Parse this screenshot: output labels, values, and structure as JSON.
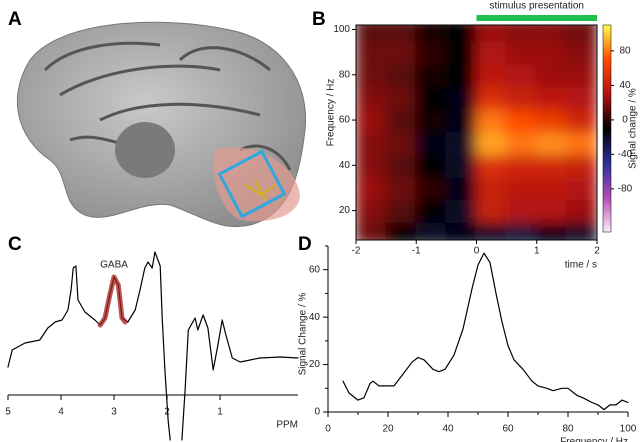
{
  "chart_data": [
    {
      "type": "image",
      "label": "A"
    },
    {
      "type": "heatmap",
      "label": "B",
      "annotation": "stimulus presentation",
      "annotation_range": [
        0,
        2
      ],
      "annotation_color": "#1fbf4f",
      "x": [
        -1.75,
        -1.25,
        -0.75,
        -0.25,
        0.25,
        0.75,
        1.25,
        1.75
      ],
      "y": [
        10,
        20,
        30,
        40,
        50,
        60,
        70,
        80,
        90,
        100
      ],
      "z": [
        [
          15,
          -10,
          -20,
          -15,
          -20,
          -25,
          -15,
          -20
        ],
        [
          20,
          10,
          -10,
          -20,
          40,
          30,
          30,
          25
        ],
        [
          25,
          15,
          0,
          -15,
          40,
          35,
          35,
          30
        ],
        [
          20,
          10,
          -10,
          -20,
          50,
          45,
          45,
          40
        ],
        [
          20,
          15,
          -15,
          -20,
          90,
          80,
          85,
          80
        ],
        [
          25,
          10,
          -5,
          -15,
          80,
          70,
          60,
          45
        ],
        [
          20,
          15,
          -10,
          -15,
          50,
          40,
          35,
          30
        ],
        [
          15,
          10,
          -5,
          -10,
          35,
          30,
          25,
          25
        ],
        [
          15,
          15,
          0,
          -10,
          30,
          25,
          25,
          20
        ],
        [
          10,
          10,
          -5,
          -10,
          25,
          20,
          20,
          15
        ]
      ],
      "xlim": [
        -2,
        2
      ],
      "ylim": [
        7,
        102
      ],
      "xticks": [
        -2,
        -1,
        0,
        1,
        2
      ],
      "yticks": [
        20,
        40,
        60,
        80,
        100
      ],
      "xlabel": "time / s",
      "ylabel": "Frequency / Hz",
      "colorbar_label": "Signal change / %",
      "clim": [
        -130,
        110
      ],
      "colorbar_ticks": [
        80,
        40,
        0,
        -40,
        -80
      ],
      "colormap": [
        "#fbeefb",
        "#b54bb5",
        "#2b2f9a",
        "#000000",
        "#b21212",
        "#ff4a00",
        "#ffff48"
      ]
    },
    {
      "type": "line",
      "label": "C",
      "xlabel": "PPM",
      "xlim": [
        5,
        -0.47
      ],
      "ylim": [
        -45,
        150
      ],
      "xticks": [
        5,
        4,
        3,
        2,
        1
      ],
      "annotation": "GABA",
      "series": [
        {
          "color": "#000000",
          "x": [
            5.0,
            4.92,
            4.68,
            4.4,
            4.25,
            4.11,
            3.98,
            3.87,
            3.81,
            3.77,
            3.72,
            3.68,
            3.55,
            3.36,
            3.26,
            3.17,
            3.08,
            3.0,
            2.92,
            2.85,
            2.74,
            2.6,
            2.51,
            2.42,
            2.36,
            2.28,
            2.23,
            2.13,
            2.09,
            2.04,
            1.98,
            1.94,
            1.83,
            1.72,
            1.66,
            1.6,
            1.47,
            1.42,
            1.32,
            1.23,
            1.13,
            1.04,
            0.96,
            0.89,
            0.77,
            0.62,
            0.25,
            -0.13,
            -0.47
          ],
          "values": [
            28,
            45,
            52,
            55,
            67,
            73,
            75,
            85,
            105,
            127,
            129,
            95,
            83,
            75,
            70,
            77,
            100,
            118,
            110,
            77,
            73,
            85,
            105,
            127,
            133,
            127,
            143,
            129,
            75,
            25,
            -25,
            -45,
            null,
            -45,
            5,
            65,
            77,
            65,
            80,
            67,
            25,
            50,
            75,
            60,
            37,
            33,
            37,
            38,
            37
          ]
        },
        {
          "name": "GABA",
          "color": "#a3201c",
          "x": [
            3.26,
            3.17,
            3.08,
            3.0,
            2.92,
            2.85,
            2.79
          ],
          "values": [
            70,
            77,
            100,
            118,
            110,
            77,
            73
          ]
        }
      ]
    },
    {
      "type": "line",
      "label": "D",
      "xlabel": "Frequency / Hz",
      "ylabel": "Signal Change / %",
      "xlim": [
        0,
        100
      ],
      "ylim": [
        0,
        70
      ],
      "xticks": [
        0,
        20,
        40,
        60,
        80,
        100
      ],
      "yticks": [
        0,
        20,
        40,
        60
      ],
      "xminorticks": [
        10,
        30,
        50,
        70,
        90
      ],
      "yminorticks": [
        10,
        30,
        50,
        70
      ],
      "series": [
        {
          "color": "#000000",
          "x": [
            5,
            7,
            10,
            12,
            14,
            15,
            17,
            20,
            22,
            25,
            28,
            30,
            32,
            35,
            37,
            39,
            42,
            45,
            48,
            50,
            52,
            54,
            56,
            58,
            60,
            62,
            65,
            68,
            70,
            73,
            75,
            78,
            80,
            83,
            85,
            88,
            90,
            92,
            94,
            96,
            98,
            100
          ],
          "values": [
            13,
            8,
            5,
            6,
            12,
            13,
            11,
            11,
            11,
            16,
            21,
            23,
            22,
            18,
            17,
            18,
            24,
            35,
            52,
            62,
            67,
            63,
            50,
            38,
            28,
            22,
            18,
            13,
            11,
            10,
            9,
            10,
            10,
            7,
            6,
            4,
            3,
            1,
            3,
            3,
            5,
            4
          ]
        }
      ]
    }
  ]
}
